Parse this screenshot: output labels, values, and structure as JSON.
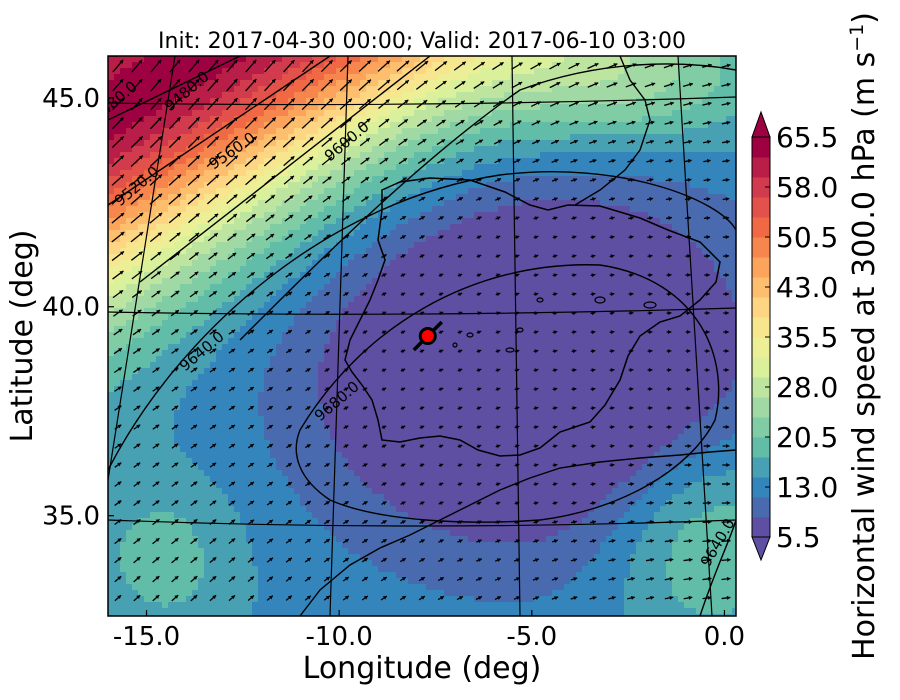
{
  "chart_data": {
    "type": "heatmap",
    "title": "Init: 2017-04-30 00:00; Valid: 2017-06-10 03:00",
    "xlabel": "Longitude (deg)",
    "ylabel": "Latitude (deg)",
    "xlim": [
      -16.0,
      0.3
    ],
    "ylim": [
      32.6,
      46.0
    ],
    "x_ticks": [
      "-15.0",
      "-10.0",
      "-5.0",
      "0.0"
    ],
    "y_ticks": [
      "35.0",
      "40.0",
      "45.0"
    ],
    "x_tick_values": [
      -15.0,
      -10.0,
      -5.0,
      0.0
    ],
    "y_tick_values": [
      35.0,
      40.0,
      45.0
    ],
    "colorbar": {
      "label": "Horizontal wind speed at 300.0 hPa (m s",
      "label_exponent": "−1",
      "label_close": ")",
      "tick_labels": [
        "5.5",
        "13.0",
        "20.5",
        "28.0",
        "35.5",
        "43.0",
        "50.5",
        "58.0",
        "65.5"
      ],
      "tick_values": [
        5.5,
        13.0,
        20.5,
        28.0,
        35.5,
        43.0,
        50.5,
        58.0,
        65.5
      ],
      "extend": "both",
      "colormap": "Spectral_r",
      "colors": [
        "#5e4fa2",
        "#3288bd",
        "#66c2a5",
        "#abdda4",
        "#e6f598",
        "#fee08b",
        "#fdae61",
        "#f46d43",
        "#d53e4f",
        "#9e0142"
      ]
    },
    "contour_variable": "geopotential height",
    "contour_labels": [
      "9480.0",
      "9520.0",
      "9560.0",
      "9600.0",
      "9640.0",
      "9680.0",
      "9640.0",
      "9480.0"
    ],
    "wind_speed_field": {
      "description_values": [
        {
          "lon": -15.5,
          "lat": 45.5,
          "speed": 50.5
        },
        {
          "lon": -13.0,
          "lat": 43.0,
          "speed": 35.5
        },
        {
          "lon": -10.0,
          "lat": 42.0,
          "speed": 20.5
        },
        {
          "lon": -6.0,
          "lat": 39.0,
          "speed": 7.0
        },
        {
          "lon": -2.0,
          "lat": 41.0,
          "speed": 9.0
        },
        {
          "lon": -14.5,
          "lat": 34.0,
          "speed": 13.0
        },
        {
          "lon": -1.0,
          "lat": 34.5,
          "speed": 17.0
        },
        {
          "lon": -3.0,
          "lat": 45.5,
          "speed": 18.0
        }
      ]
    },
    "marker": {
      "lon": -7.7,
      "lat": 39.3,
      "color": "#ff0000"
    },
    "grid": true
  }
}
